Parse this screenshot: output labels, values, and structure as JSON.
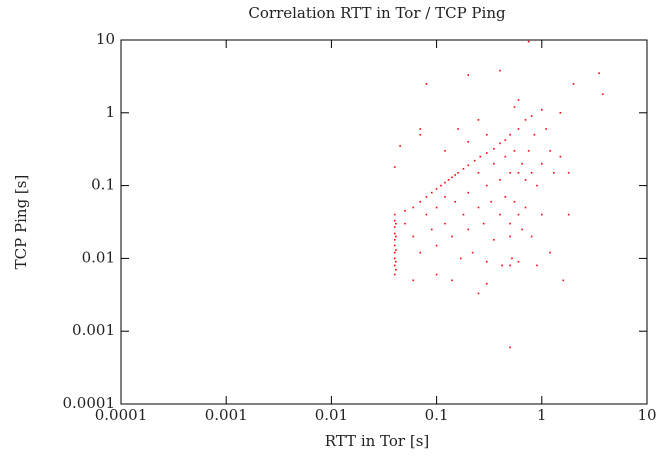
{
  "chart_data": {
    "type": "scatter",
    "title": "Correlation RTT in Tor / TCP Ping",
    "xlabel": "RTT in Tor [s]",
    "ylabel": "TCP Ping [s]",
    "xscale": "log",
    "yscale": "log",
    "color": "#ff0000",
    "xlim": [
      0.0001,
      10
    ],
    "ylim": [
      0.0001,
      10
    ],
    "xticks": [
      0.0001,
      0.001,
      0.01,
      0.1,
      1,
      10
    ],
    "yticks": [
      0.0001,
      0.001,
      0.01,
      0.1,
      1,
      10
    ],
    "x": [
      0.04,
      0.04,
      0.04,
      0.04,
      0.04,
      0.04,
      0.04,
      0.04,
      0.04,
      0.04,
      0.041,
      0.041,
      0.041,
      0.041,
      0.041,
      0.05,
      0.06,
      0.07,
      0.08,
      0.09,
      0.1,
      0.12,
      0.14,
      0.16,
      0.18,
      0.2,
      0.23,
      0.26,
      0.3,
      0.35,
      0.4,
      0.45,
      0.5,
      0.6,
      0.7,
      0.11,
      0.13,
      0.15,
      0.05,
      0.06,
      0.07,
      0.08,
      0.09,
      0.1,
      0.1,
      0.12,
      0.12,
      0.14,
      0.15,
      0.17,
      0.18,
      0.2,
      0.2,
      0.22,
      0.25,
      0.25,
      0.28,
      0.3,
      0.3,
      0.33,
      0.35,
      0.35,
      0.4,
      0.4,
      0.42,
      0.45,
      0.45,
      0.5,
      0.5,
      0.5,
      0.52,
      0.55,
      0.55,
      0.6,
      0.6,
      0.6,
      0.65,
      0.65,
      0.7,
      0.7,
      0.75,
      0.8,
      0.8,
      0.85,
      0.9,
      0.9,
      1.0,
      1.0,
      1.1,
      1.2,
      1.2,
      1.3,
      1.5,
      1.6,
      1.8,
      1.8,
      0.55,
      0.6,
      0.8,
      1.0,
      1.5,
      0.3,
      0.2,
      0.16,
      0.06,
      0.1,
      0.14,
      0.3,
      0.5,
      0.12,
      0.25,
      0.04,
      0.045,
      0.07,
      0.07,
      0.08,
      0.2,
      0.4,
      0.75,
      2,
      3.5,
      3.8,
      0.5,
      0.25
    ],
    "y": [
      0.006,
      0.008,
      0.01,
      0.012,
      0.015,
      0.018,
      0.022,
      0.027,
      0.033,
      0.04,
      0.007,
      0.009,
      0.013,
      0.02,
      0.03,
      0.045,
      0.05,
      0.06,
      0.07,
      0.08,
      0.09,
      0.11,
      0.13,
      0.15,
      0.17,
      0.19,
      0.22,
      0.25,
      0.28,
      0.32,
      0.38,
      0.42,
      0.5,
      0.6,
      0.8,
      0.1,
      0.12,
      0.14,
      0.03,
      0.02,
      0.012,
      0.04,
      0.025,
      0.015,
      0.05,
      0.03,
      0.07,
      0.02,
      0.06,
      0.01,
      0.04,
      0.08,
      0.025,
      0.012,
      0.05,
      0.15,
      0.03,
      0.1,
      0.009,
      0.06,
      0.2,
      0.018,
      0.12,
      0.04,
      0.008,
      0.25,
      0.07,
      0.15,
      0.03,
      0.02,
      0.01,
      0.3,
      0.06,
      0.15,
      0.04,
      0.009,
      0.2,
      0.025,
      0.12,
      0.05,
      0.3,
      0.15,
      0.02,
      0.5,
      0.1,
      0.008,
      0.2,
      0.04,
      0.6,
      0.3,
      0.012,
      0.15,
      0.25,
      0.005,
      0.04,
      0.15,
      1.2,
      1.5,
      0.9,
      1.1,
      1.0,
      0.5,
      0.4,
      0.6,
      0.005,
      0.006,
      0.005,
      0.0045,
      0.008,
      0.3,
      0.8,
      0.18,
      0.35,
      0.5,
      0.6,
      2.5,
      3.3,
      3.8,
      9.5,
      2.5,
      3.5,
      1.8,
      0.0006,
      0.0033
    ]
  }
}
